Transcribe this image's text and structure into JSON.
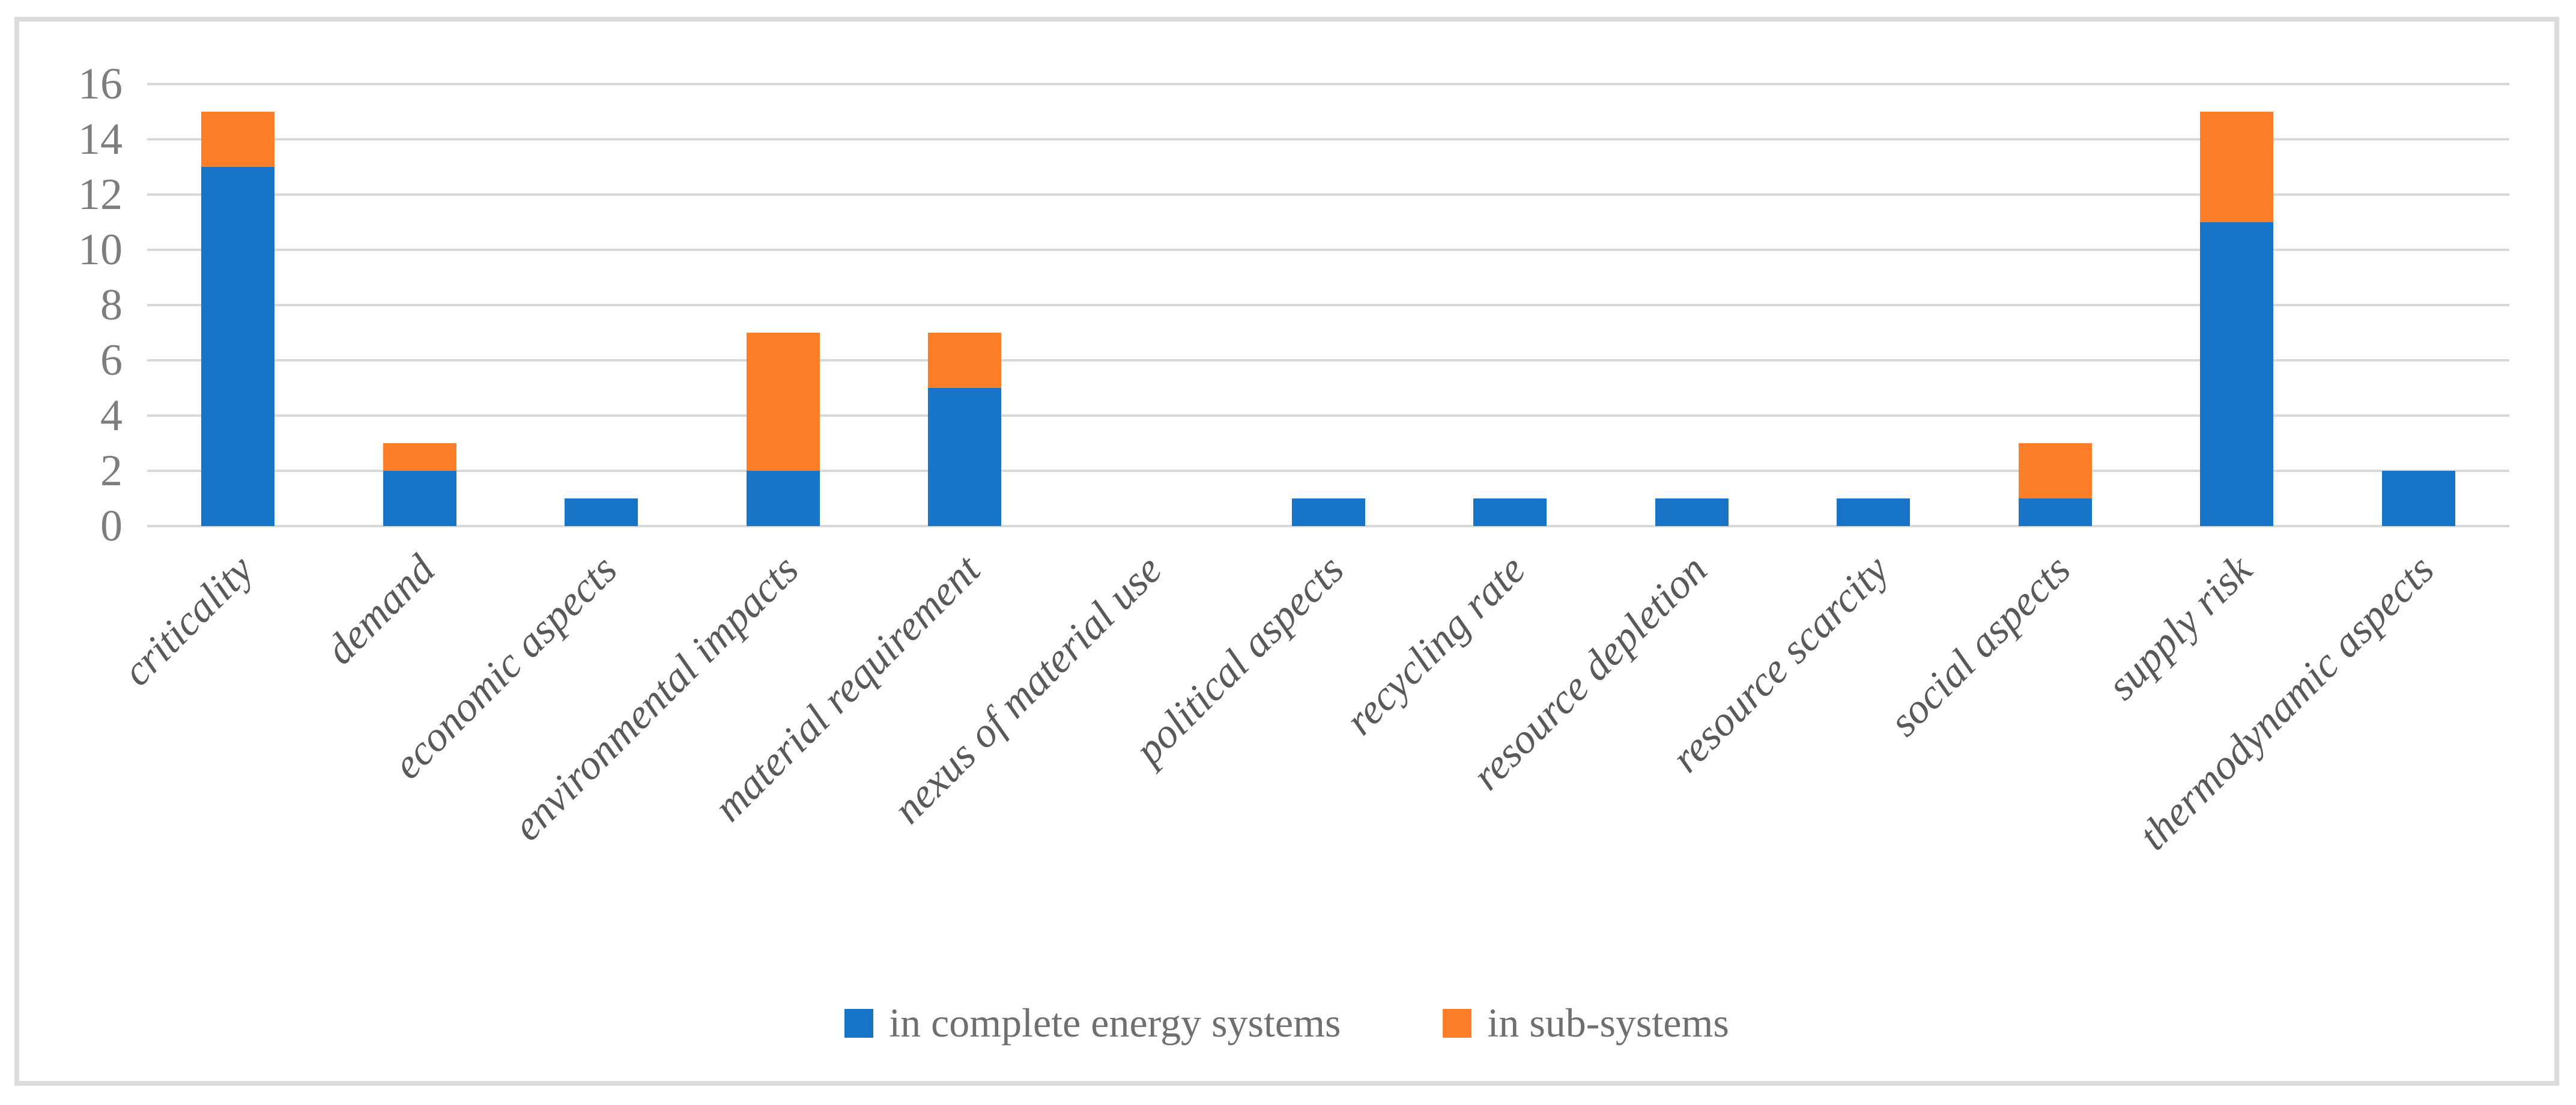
{
  "chart_data": {
    "type": "bar",
    "stacked": true,
    "categories": [
      "criticality",
      "demand",
      "economic aspects",
      "environmental impacts",
      "material requirement",
      "nexus of material use",
      "political aspects",
      "recycling rate",
      "resource depletion",
      "resource scarcity",
      "social aspects",
      "supply risk",
      "thermodynamic aspects"
    ],
    "series": [
      {
        "name": "in complete energy systems",
        "color": "#1774C7",
        "values": [
          13,
          2,
          1,
          2,
          5,
          0,
          1,
          1,
          1,
          1,
          1,
          11,
          2
        ]
      },
      {
        "name": "in sub-systems",
        "color": "#FD7E28",
        "values": [
          2,
          1,
          0,
          5,
          2,
          0,
          0,
          0,
          0,
          0,
          2,
          4,
          0
        ]
      }
    ],
    "ylim": [
      0,
      16
    ],
    "yticks": [
      0,
      2,
      4,
      6,
      8,
      10,
      12,
      14,
      16
    ],
    "grid": true,
    "legend_position": "bottom-center"
  },
  "colors": {
    "background": "#FFFFFF",
    "frame_border": "#DBDBDB",
    "gridline": "#D9D9D9",
    "ytick_text": "#7D7D7D",
    "xtick_text": "#595959",
    "legend_text": "#6F6F6F"
  }
}
